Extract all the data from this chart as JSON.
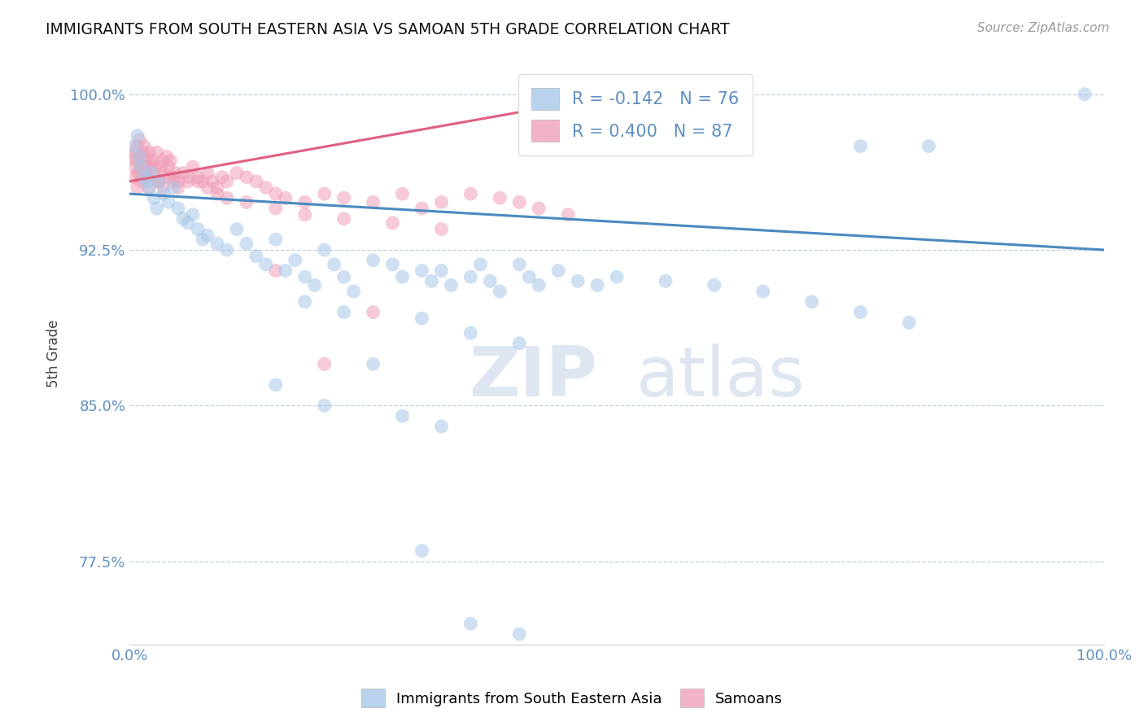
{
  "title": "IMMIGRANTS FROM SOUTH EASTERN ASIA VS SAMOAN 5TH GRADE CORRELATION CHART",
  "source_text": "Source: ZipAtlas.com",
  "ylabel": "5th Grade",
  "watermark_zip": "ZIP",
  "watermark_atlas": "atlas",
  "xlim": [
    0.0,
    1.0
  ],
  "ylim": [
    0.735,
    1.015
  ],
  "yticks": [
    0.775,
    0.85,
    0.925,
    1.0
  ],
  "ytick_labels": [
    "77.5%",
    "85.0%",
    "92.5%",
    "100.0%"
  ],
  "xtick_labels": [
    "0.0%",
    "100.0%"
  ],
  "xticks": [
    0.0,
    1.0
  ],
  "blue_R": -0.142,
  "blue_N": 76,
  "pink_R": 0.4,
  "pink_N": 87,
  "blue_color": "#a8c8e8",
  "pink_color": "#f0a0b8",
  "blue_line_color": "#4a8abf",
  "pink_line_color": "#e06080",
  "tick_color": "#6090c0",
  "legend_blue_label": "Immigrants from South Eastern Asia",
  "legend_pink_label": "Samoans",
  "blue_scatter_x": [
    0.005,
    0.008,
    0.01,
    0.012,
    0.015,
    0.018,
    0.02,
    0.022,
    0.025,
    0.028,
    0.03,
    0.035,
    0.04,
    0.045,
    0.05,
    0.055,
    0.06,
    0.065,
    0.07,
    0.075,
    0.08,
    0.09,
    0.1,
    0.11,
    0.12,
    0.13,
    0.14,
    0.15,
    0.16,
    0.17,
    0.18,
    0.19,
    0.2,
    0.21,
    0.22,
    0.23,
    0.25,
    0.27,
    0.28,
    0.3,
    0.31,
    0.32,
    0.33,
    0.35,
    0.36,
    0.37,
    0.38,
    0.4,
    0.41,
    0.42,
    0.44,
    0.46,
    0.48,
    0.5,
    0.55,
    0.6,
    0.65,
    0.7,
    0.75,
    0.8,
    0.18,
    0.22,
    0.3,
    0.35,
    0.4,
    0.25,
    0.15,
    0.2,
    0.28,
    0.32,
    0.75,
    0.82,
    0.98,
    0.3,
    0.35,
    0.4
  ],
  "blue_scatter_y": [
    0.975,
    0.98,
    0.97,
    0.965,
    0.96,
    0.958,
    0.955,
    0.962,
    0.95,
    0.945,
    0.958,
    0.952,
    0.948,
    0.955,
    0.945,
    0.94,
    0.938,
    0.942,
    0.935,
    0.93,
    0.932,
    0.928,
    0.925,
    0.935,
    0.928,
    0.922,
    0.918,
    0.93,
    0.915,
    0.92,
    0.912,
    0.908,
    0.925,
    0.918,
    0.912,
    0.905,
    0.92,
    0.918,
    0.912,
    0.915,
    0.91,
    0.915,
    0.908,
    0.912,
    0.918,
    0.91,
    0.905,
    0.918,
    0.912,
    0.908,
    0.915,
    0.91,
    0.908,
    0.912,
    0.91,
    0.908,
    0.905,
    0.9,
    0.895,
    0.89,
    0.9,
    0.895,
    0.892,
    0.885,
    0.88,
    0.87,
    0.86,
    0.85,
    0.845,
    0.84,
    0.975,
    0.975,
    1.0,
    0.78,
    0.745,
    0.74
  ],
  "pink_scatter_x": [
    0.003,
    0.005,
    0.006,
    0.007,
    0.008,
    0.009,
    0.01,
    0.011,
    0.012,
    0.013,
    0.014,
    0.015,
    0.016,
    0.017,
    0.018,
    0.019,
    0.02,
    0.022,
    0.024,
    0.025,
    0.027,
    0.028,
    0.03,
    0.032,
    0.034,
    0.035,
    0.038,
    0.04,
    0.042,
    0.045,
    0.047,
    0.05,
    0.055,
    0.06,
    0.065,
    0.07,
    0.075,
    0.08,
    0.085,
    0.09,
    0.095,
    0.1,
    0.11,
    0.12,
    0.13,
    0.14,
    0.15,
    0.16,
    0.18,
    0.2,
    0.22,
    0.25,
    0.28,
    0.3,
    0.32,
    0.35,
    0.38,
    0.4,
    0.42,
    0.45,
    0.005,
    0.008,
    0.01,
    0.012,
    0.015,
    0.018,
    0.02,
    0.025,
    0.03,
    0.035,
    0.04,
    0.045,
    0.05,
    0.06,
    0.07,
    0.08,
    0.09,
    0.1,
    0.12,
    0.15,
    0.18,
    0.22,
    0.27,
    0.32,
    0.2,
    0.25,
    0.15
  ],
  "pink_scatter_y": [
    0.97,
    0.972,
    0.965,
    0.968,
    0.975,
    0.962,
    0.978,
    0.97,
    0.965,
    0.972,
    0.968,
    0.975,
    0.962,
    0.97,
    0.965,
    0.968,
    0.972,
    0.965,
    0.968,
    0.96,
    0.965,
    0.972,
    0.958,
    0.965,
    0.968,
    0.962,
    0.97,
    0.965,
    0.968,
    0.96,
    0.962,
    0.958,
    0.962,
    0.958,
    0.965,
    0.96,
    0.958,
    0.962,
    0.958,
    0.955,
    0.96,
    0.958,
    0.962,
    0.96,
    0.958,
    0.955,
    0.952,
    0.95,
    0.948,
    0.952,
    0.95,
    0.948,
    0.952,
    0.945,
    0.948,
    0.952,
    0.95,
    0.948,
    0.945,
    0.942,
    0.96,
    0.955,
    0.962,
    0.958,
    0.965,
    0.96,
    0.955,
    0.962,
    0.958,
    0.955,
    0.96,
    0.958,
    0.955,
    0.96,
    0.958,
    0.955,
    0.952,
    0.95,
    0.948,
    0.945,
    0.942,
    0.94,
    0.938,
    0.935,
    0.87,
    0.895,
    0.915
  ],
  "blue_trend_x": [
    0.0,
    1.0
  ],
  "blue_trend_y": [
    0.952,
    0.925
  ],
  "pink_trend_x": [
    0.0,
    0.48
  ],
  "pink_trend_y": [
    0.958,
    0.998
  ]
}
